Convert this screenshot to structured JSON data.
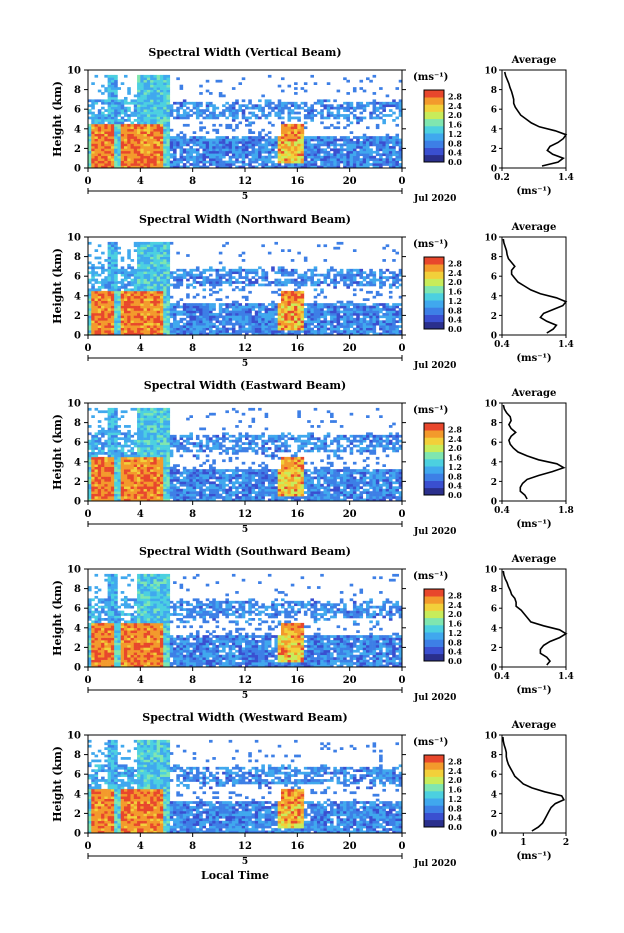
{
  "xlabel": "Local Time",
  "date_label": "Jul 2020",
  "day_label": "5",
  "time_ticks": [
    "0",
    "4",
    "8",
    "12",
    "16",
    "20",
    "0"
  ],
  "height_ticks": [
    "0",
    "2",
    "4",
    "6",
    "8",
    "10"
  ],
  "height_label": "Height (km)",
  "colorbar": {
    "unit": "(ms⁻¹)",
    "ticks": [
      "0.0",
      "0.4",
      "0.8",
      "1.2",
      "1.6",
      "2.0",
      "2.4",
      "2.8"
    ],
    "colors": [
      "#2a2f8c",
      "#3a4fd0",
      "#3d7fe6",
      "#40a8ee",
      "#4cd0e0",
      "#7fe6b0",
      "#c8ec5a",
      "#f2d03a",
      "#f39a2c",
      "#e8472c"
    ]
  },
  "chart_data": [
    {
      "type": "heatmap",
      "title": "Spectral Width (Vertical Beam)",
      "x_range_hours": [
        0,
        24
      ],
      "y_range_km": [
        0,
        10
      ],
      "color_range": [
        0,
        3.0
      ],
      "average_profile": {
        "title": "Average",
        "xlabel": "(ms⁻¹)",
        "x_ticks": [
          "0.2",
          "1.4"
        ],
        "x_range": [
          0.2,
          1.4
        ],
        "heights_km": [
          0.2,
          0.6,
          1.0,
          1.4,
          1.8,
          2.2,
          2.6,
          3.0,
          3.4,
          3.8,
          4.2,
          4.6,
          5.0,
          5.4,
          5.8,
          6.2,
          6.6,
          7.0,
          7.4,
          7.8,
          8.2,
          8.6,
          9.0,
          9.4,
          9.8
        ],
        "values": [
          0.95,
          1.25,
          1.35,
          1.15,
          1.05,
          1.1,
          1.25,
          1.35,
          1.4,
          1.2,
          0.9,
          0.75,
          0.65,
          0.55,
          0.5,
          0.45,
          0.42,
          0.42,
          0.4,
          0.38,
          0.35,
          0.33,
          0.3,
          0.27,
          0.25
        ]
      }
    },
    {
      "type": "heatmap",
      "title": "Spectral Width (Northward Beam)",
      "x_range_hours": [
        0,
        24
      ],
      "y_range_km": [
        0,
        10
      ],
      "color_range": [
        0,
        3.0
      ],
      "average_profile": {
        "title": "Average",
        "xlabel": "(ms⁻¹)",
        "x_ticks": [
          "0.4",
          "1.4"
        ],
        "x_range": [
          0.4,
          1.4
        ],
        "heights_km": [
          0.2,
          0.6,
          1.0,
          1.4,
          1.8,
          2.2,
          2.6,
          3.0,
          3.4,
          3.8,
          4.2,
          4.6,
          5.0,
          5.4,
          5.8,
          6.2,
          6.6,
          7.0,
          7.4,
          7.8,
          8.2,
          8.6,
          9.0,
          9.4,
          9.8
        ],
        "values": [
          1.1,
          1.2,
          1.25,
          1.1,
          1.0,
          1.05,
          1.2,
          1.35,
          1.4,
          1.25,
          1.0,
          0.85,
          0.75,
          0.65,
          0.6,
          0.55,
          0.55,
          0.6,
          0.55,
          0.5,
          0.48,
          0.47,
          0.45,
          0.43,
          0.42
        ]
      }
    },
    {
      "type": "heatmap",
      "title": "Spectral Width (Eastward Beam)",
      "x_range_hours": [
        0,
        24
      ],
      "y_range_km": [
        0,
        10
      ],
      "color_range": [
        0,
        3.0
      ],
      "average_profile": {
        "title": "Average",
        "xlabel": "(ms⁻¹)",
        "x_ticks": [
          "0.4",
          "1.8"
        ],
        "x_range": [
          0.4,
          1.8
        ],
        "heights_km": [
          0.2,
          0.6,
          1.0,
          1.4,
          1.8,
          2.2,
          2.6,
          3.0,
          3.4,
          3.8,
          4.2,
          4.6,
          5.0,
          5.4,
          5.8,
          6.2,
          6.6,
          7.0,
          7.4,
          7.8,
          8.2,
          8.6,
          9.0,
          9.4,
          9.8
        ],
        "values": [
          0.95,
          0.9,
          0.8,
          0.8,
          0.85,
          0.95,
          1.2,
          1.5,
          1.75,
          1.6,
          1.2,
          0.95,
          0.75,
          0.65,
          0.58,
          0.55,
          0.6,
          0.7,
          0.6,
          0.55,
          0.6,
          0.58,
          0.5,
          0.45,
          0.43
        ]
      }
    },
    {
      "type": "heatmap",
      "title": "Spectral Width (Southward Beam)",
      "x_range_hours": [
        0,
        24
      ],
      "y_range_km": [
        0,
        10
      ],
      "color_range": [
        0,
        3.0
      ],
      "average_profile": {
        "title": "Average",
        "xlabel": "(ms⁻¹)",
        "x_ticks": [
          "0.4",
          "1.4"
        ],
        "x_range": [
          0.4,
          1.4
        ],
        "heights_km": [
          0.2,
          0.6,
          1.0,
          1.4,
          1.8,
          2.2,
          2.6,
          3.0,
          3.4,
          3.8,
          4.2,
          4.6,
          5.0,
          5.4,
          5.8,
          6.2,
          6.6,
          7.0,
          7.4,
          7.8,
          8.2,
          8.6,
          9.0,
          9.4,
          9.8
        ],
        "values": [
          1.1,
          1.15,
          1.1,
          1.0,
          1.0,
          1.05,
          1.15,
          1.3,
          1.4,
          1.3,
          1.05,
          0.85,
          0.8,
          0.75,
          0.7,
          0.62,
          0.62,
          0.6,
          0.55,
          0.53,
          0.5,
          0.48,
          0.45,
          0.43,
          0.42
        ]
      }
    },
    {
      "type": "heatmap",
      "title": "Spectral Width (Westward Beam)",
      "x_range_hours": [
        0,
        24
      ],
      "y_range_km": [
        0,
        10
      ],
      "color_range": [
        0,
        3.0
      ],
      "average_profile": {
        "title": "Average",
        "xlabel": "(ms⁻¹)",
        "x_ticks": [
          "1",
          "2"
        ],
        "x_range": [
          0.5,
          2.0
        ],
        "heights_km": [
          0.2,
          0.6,
          1.0,
          1.4,
          1.8,
          2.2,
          2.6,
          3.0,
          3.4,
          3.8,
          4.2,
          4.6,
          5.0,
          5.4,
          5.8,
          6.2,
          6.6,
          7.0,
          7.4,
          7.8,
          8.2,
          8.6,
          9.0,
          9.4,
          9.8
        ],
        "values": [
          1.2,
          1.35,
          1.45,
          1.5,
          1.55,
          1.6,
          1.65,
          1.75,
          1.95,
          1.9,
          1.5,
          1.2,
          1.0,
          0.9,
          0.8,
          0.75,
          0.7,
          0.65,
          0.62,
          0.6,
          0.6,
          0.58,
          0.55,
          0.53,
          0.52
        ]
      }
    }
  ]
}
